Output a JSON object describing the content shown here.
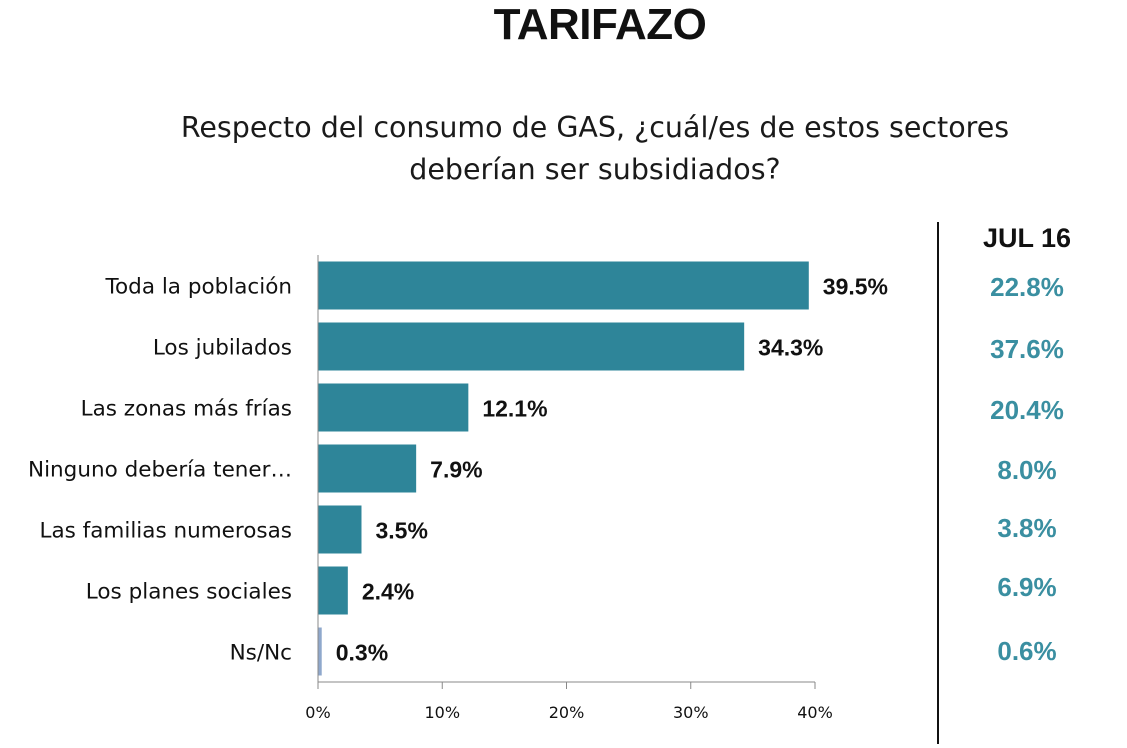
{
  "header": {
    "title": "TARIFAZO",
    "subtitle_line1": "Respecto del consumo de GAS, ¿cuál/es de estos sectores",
    "subtitle_line2": "deberían ser subsidiados?"
  },
  "comparison": {
    "header": "JUL 16",
    "values": [
      "22.8%",
      "37.6%",
      "20.4%",
      "8.0%",
      "3.8%",
      "6.9%",
      "0.6%"
    ],
    "color": "#3a8fa1"
  },
  "chart_data": {
    "type": "bar",
    "orientation": "horizontal",
    "title": "",
    "xlabel": "",
    "ylabel": "",
    "categories": [
      "Toda la población",
      "Los jubilados",
      "Las zonas más frías",
      "Ninguno debería tener…",
      "Las familias numerosas",
      "Los planes sociales",
      "Ns/Nc"
    ],
    "values": [
      39.5,
      34.3,
      12.1,
      7.9,
      3.5,
      2.4,
      0.3
    ],
    "value_labels": [
      "39.5%",
      "34.3%",
      "12.1%",
      "7.9%",
      "3.5%",
      "2.4%",
      "0.3%"
    ],
    "xlim": [
      0,
      40
    ],
    "ticks": [
      0,
      10,
      20,
      30,
      40
    ],
    "tick_labels": [
      "0%",
      "10%",
      "20%",
      "30%",
      "40%"
    ],
    "grid": false,
    "bar_color": "#2e8599",
    "last_bar_color": "#8fa8cc",
    "axis_color": "#888888"
  }
}
